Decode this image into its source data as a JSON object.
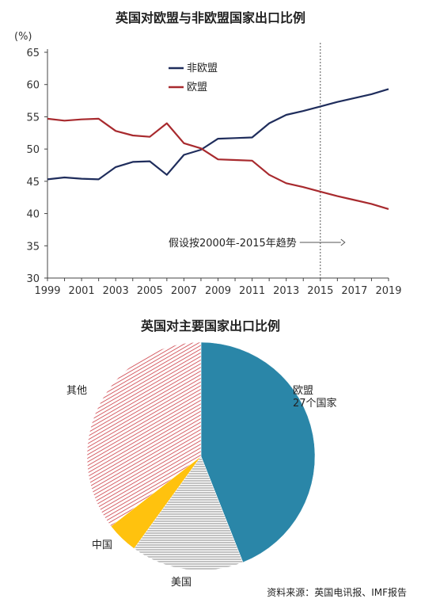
{
  "chart_data": [
    {
      "type": "line",
      "title": "英国对欧盟与非欧盟国家出口比例",
      "ylabel": "(%)",
      "xlabel": "",
      "ylim": [
        30,
        65
      ],
      "xlim": [
        1999,
        2019
      ],
      "yticks": [
        "30",
        "35",
        "40",
        "45",
        "50",
        "55",
        "60",
        "65"
      ],
      "xticks": [
        "1999",
        "2001",
        "2003",
        "2005",
        "2007",
        "2009",
        "2011",
        "2013",
        "2015",
        "2017",
        "2019"
      ],
      "x": [
        1999,
        2000,
        2001,
        2002,
        2003,
        2004,
        2005,
        2006,
        2007,
        2008,
        2009,
        2010,
        2011,
        2012,
        2013,
        2014,
        2015,
        2016,
        2017,
        2018,
        2019
      ],
      "series": [
        {
          "name": "非欧盟",
          "color": "#1f2d5c",
          "values": [
            45.3,
            45.6,
            45.4,
            45.3,
            47.2,
            48.0,
            48.1,
            46.0,
            49.1,
            49.9,
            51.6,
            51.7,
            51.8,
            54.0,
            55.3,
            55.9,
            56.6,
            57.3,
            57.9,
            58.5,
            59.3
          ]
        },
        {
          "name": "欧盟",
          "color": "#a82a2e",
          "values": [
            54.7,
            54.4,
            54.6,
            54.7,
            52.8,
            52.1,
            51.9,
            54.0,
            50.9,
            50.1,
            48.4,
            48.3,
            48.2,
            46.0,
            44.7,
            44.1,
            43.4,
            42.7,
            42.1,
            41.5,
            40.7
          ]
        }
      ],
      "projection_start": 2015,
      "annotation": "假设按2000年-2015年趋势",
      "legend": "upper-left inside plot",
      "grid": false
    },
    {
      "type": "pie",
      "title": "英国对主要国家出口比例",
      "slices": [
        {
          "label": "欧盟\n27个国家",
          "value": 44,
          "color": "#2a86a8",
          "pattern": "solid"
        },
        {
          "label": "美国",
          "value": 16,
          "color": "#b8b8b8",
          "pattern": "horizontal-lines"
        },
        {
          "label": "中国",
          "value": 4.5,
          "color": "#ffc20e",
          "pattern": "solid"
        },
        {
          "label": "其他",
          "value": 35.5,
          "color": "#c8373f",
          "pattern": "diagonal-lines"
        }
      ]
    }
  ],
  "source": "资料来源：英国电讯报、IMF报告"
}
